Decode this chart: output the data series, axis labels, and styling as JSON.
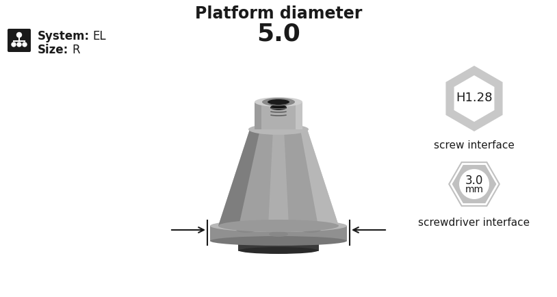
{
  "title": "Platform diameter",
  "platform_value": "5.0",
  "system_label": "System:",
  "system_value": "EL",
  "size_label": "Size:",
  "size_value": "R",
  "screw_interface_label": "screw interface",
  "screw_interface_value": "H1.28",
  "screwdriver_value_top": "3.0",
  "screwdriver_value_bot": "mm",
  "screwdriver_interface_label": "screwdriver interface",
  "bg_color": "#ffffff",
  "text_color": "#1a1a1a",
  "icon_bg": "#1a1a1a",
  "hex_ring_color": "#c8c8c8",
  "hex_solid_color": "#c0c0c0",
  "part_neck_light": "#d0d0d0",
  "part_neck_mid": "#b0b0b0",
  "part_cone_light": "#c8c8c8",
  "part_cone_mid": "#a0a0a0",
  "part_cone_dark": "#707070",
  "part_flange_top": "#b8b8b8",
  "part_flange_side": "#909090",
  "part_lobe_light": "#b5b5b5",
  "part_lobe_dark": "#888888",
  "part_base_light": "#686868",
  "part_base_dark": "#3a3a3a",
  "thread_color": "#606060",
  "thread_dark": "#303030"
}
